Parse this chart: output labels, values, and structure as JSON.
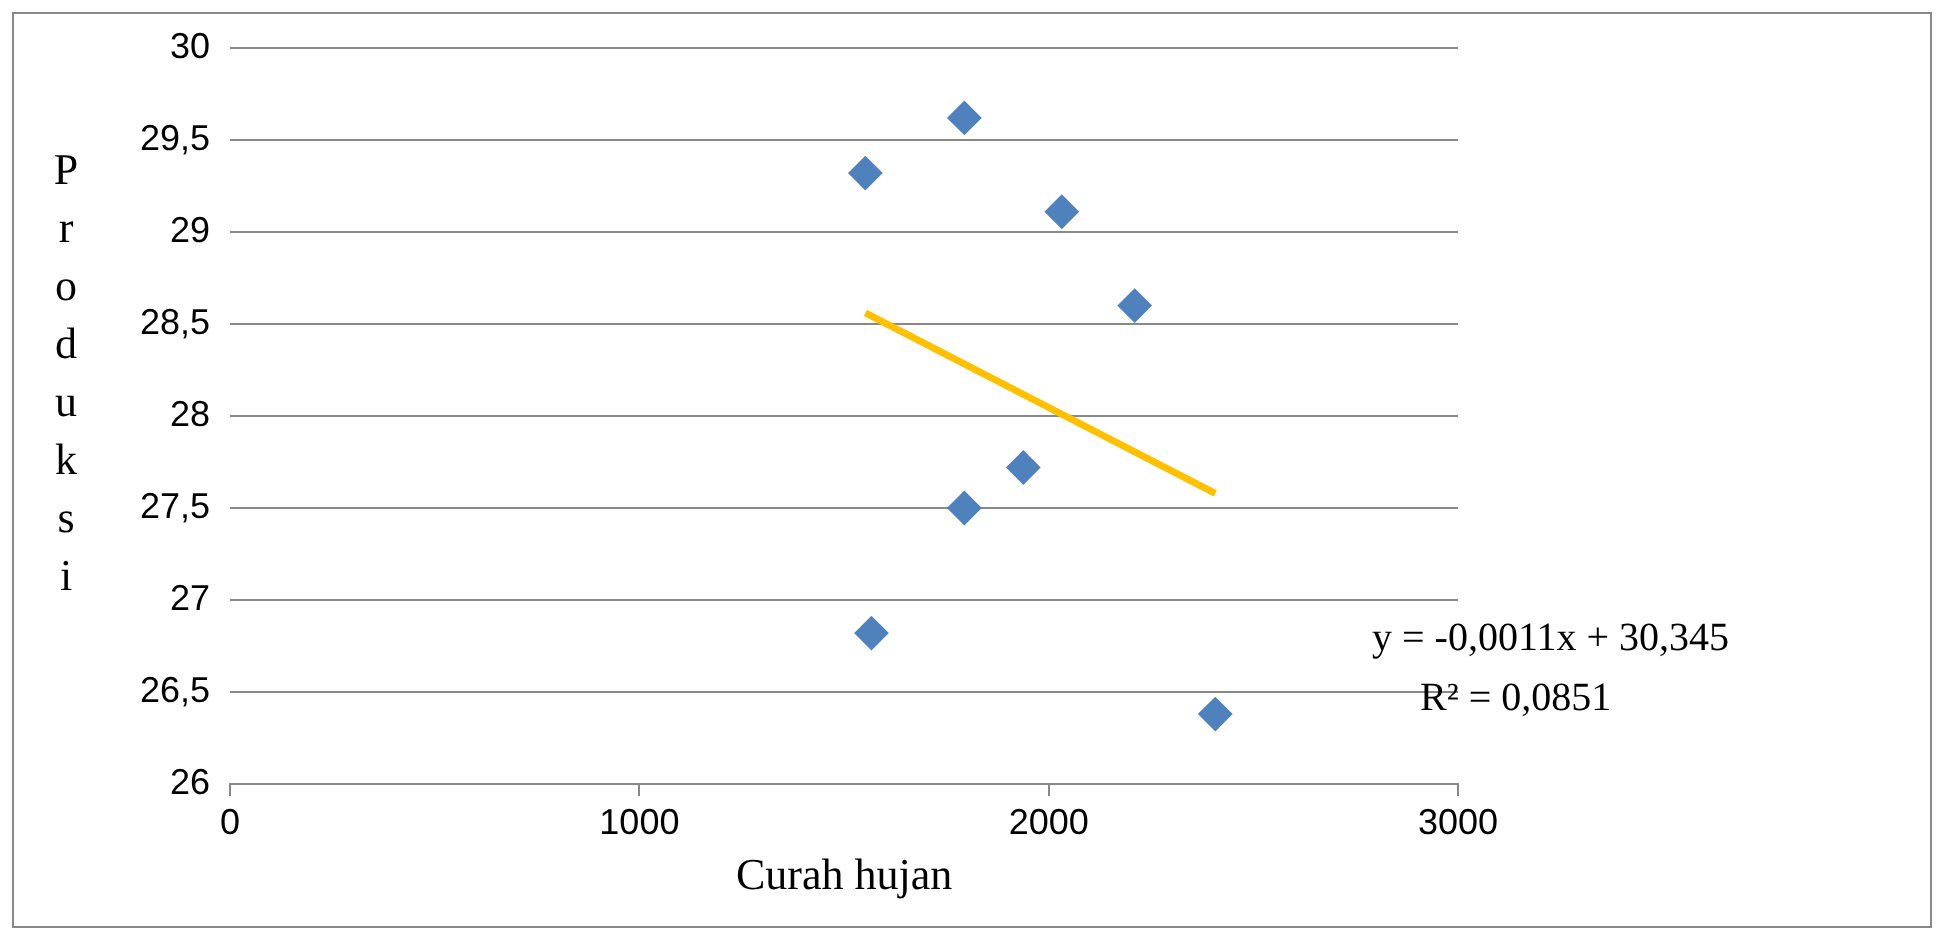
{
  "chart_data": {
    "type": "scatter",
    "xlabel": "Curah hujan",
    "ylabel": "Produksi",
    "xlim": [
      0,
      3000
    ],
    "xticks": [
      0,
      1000,
      2000,
      3000
    ],
    "ylim": [
      26,
      30
    ],
    "yticks": [
      {
        "value": 26,
        "label": "26"
      },
      {
        "value": 26.5,
        "label": "26,5"
      },
      {
        "value": 27,
        "label": "27"
      },
      {
        "value": 27.5,
        "label": "27,5"
      },
      {
        "value": 28,
        "label": "28"
      },
      {
        "value": 28.5,
        "label": "28,5"
      },
      {
        "value": 29,
        "label": "29"
      },
      {
        "value": 29.5,
        "label": "29,5"
      },
      {
        "value": 30,
        "label": "30"
      }
    ],
    "grid": "y",
    "legend": false,
    "series": [
      {
        "marker": "diamond",
        "color": "#4f81bd",
        "x": [
          1552,
          1794,
          2032,
          2210,
          1938,
          1794,
          1567,
          2407
        ],
        "values": [
          29.32,
          29.62,
          29.11,
          28.6,
          27.72,
          27.5,
          26.82,
          26.38
        ]
      },
      {
        "type": "line",
        "marker": "none",
        "color": "#ffc000",
        "x": [
          1552,
          2407
        ],
        "values": [
          28.56,
          27.58
        ]
      }
    ],
    "annotations": [
      "y = -0,0011x + 30,345",
      "R² = 0,0851"
    ]
  }
}
